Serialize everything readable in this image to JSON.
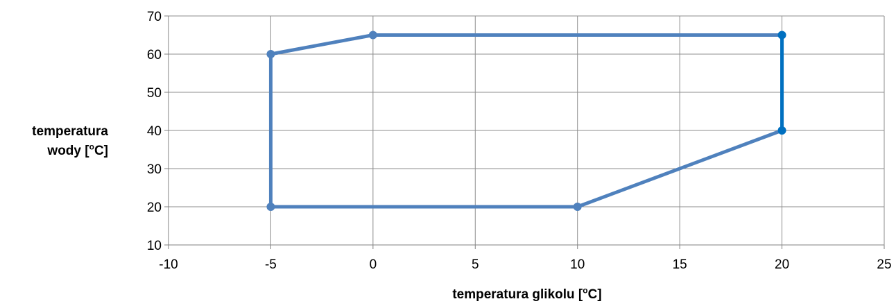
{
  "chart_data": {
    "type": "scatter",
    "xlabel_prefix": "temperatura glikolu [",
    "xlabel_sup": "o",
    "xlabel_suffix": "C]",
    "ylabel_line1": "temperatura",
    "ylabel_prefix": "wody [",
    "ylabel_sup": "o",
    "ylabel_suffix": "C]",
    "xlim": [
      -10,
      25
    ],
    "ylim": [
      10,
      70
    ],
    "xticks": [
      -10,
      -5,
      0,
      5,
      10,
      15,
      20,
      25
    ],
    "yticks": [
      10,
      20,
      30,
      40,
      50,
      60,
      70
    ],
    "grid": true,
    "series": [
      {
        "x": [
          -5,
          0,
          20,
          20,
          10,
          -5,
          -5
        ],
        "y": [
          60,
          65,
          65,
          40,
          20,
          20,
          60
        ],
        "color": "#4f81bd",
        "marker": "circle"
      }
    ],
    "highlight_segment_color": "#0070c0"
  }
}
